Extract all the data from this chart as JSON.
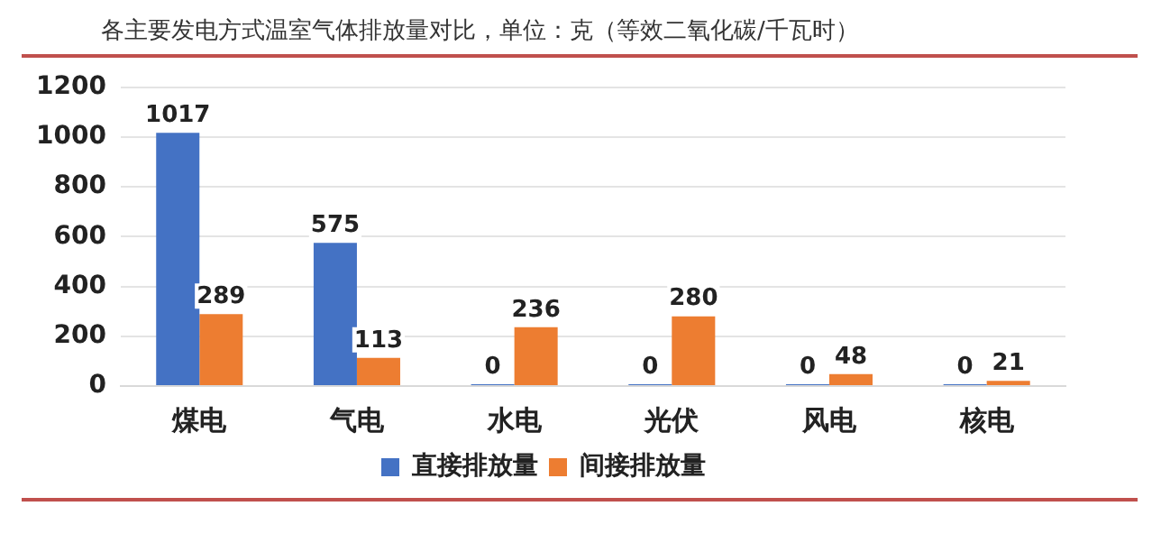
{
  "chart_data": {
    "type": "bar",
    "title": "各主要发电方式温室气体排放量对比，单位：克（等效二氧化碳/千瓦时）",
    "categories": [
      "煤电",
      "气电",
      "水电",
      "光伏",
      "风电",
      "核电"
    ],
    "series": [
      {
        "name": "直接排放量",
        "color": "#4472c4",
        "values": [
          1017,
          575,
          0,
          0,
          0,
          0
        ]
      },
      {
        "name": "间接排放量",
        "color": "#ed7d31",
        "values": [
          289,
          113,
          236,
          280,
          48,
          21
        ]
      }
    ],
    "ylim": [
      0,
      1200
    ],
    "yticks": [
      0,
      200,
      400,
      600,
      800,
      1000,
      1200
    ],
    "grid": "y",
    "legend": "bottom",
    "data_labels": true
  }
}
